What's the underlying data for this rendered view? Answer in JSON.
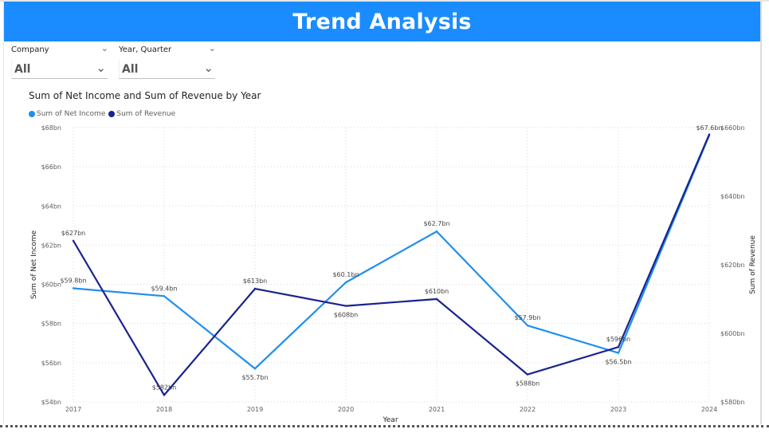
{
  "header": {
    "title": "Trend Analysis"
  },
  "slicers": [
    {
      "label": "Company",
      "value": "All"
    },
    {
      "label": "Year, Quarter",
      "value": "All"
    }
  ],
  "colors": {
    "title_bar": "#1a8cff",
    "net_income": "#1f8fee",
    "revenue": "#1a238f",
    "grid": "#d8d8d8"
  },
  "chart_data": {
    "type": "line",
    "title": "Sum of Net Income and Sum of Revenue by Year",
    "xlabel": "Year",
    "ylabel": "Sum of Net Income",
    "y2label": "Sum of Revenue",
    "x": [
      "2017",
      "2018",
      "2019",
      "2020",
      "2021",
      "2022",
      "2023",
      "2024"
    ],
    "ylim": [
      54,
      68
    ],
    "y_ticks": [
      54,
      56,
      58,
      60,
      62,
      64,
      66,
      68
    ],
    "y_tick_labels": [
      "$54bn",
      "$56bn",
      "$58bn",
      "$60bn",
      "$62bn",
      "$64bn",
      "$66bn",
      "$68bn"
    ],
    "y2lim": [
      580,
      660
    ],
    "y2_ticks": [
      580,
      600,
      620,
      640,
      660
    ],
    "y2_tick_labels": [
      "$580bn",
      "$600bn",
      "$620bn",
      "$640bn",
      "$660bn"
    ],
    "grid": true,
    "legend_position": "top-left",
    "series": [
      {
        "name": "Sum of Net Income",
        "axis": "left",
        "values": [
          59.8,
          59.4,
          55.7,
          60.1,
          62.7,
          57.9,
          56.5,
          67.6
        ],
        "labels": [
          "$59.8bn",
          "$59.4bn",
          "$55.7bn",
          "$60.1bn",
          "$62.7bn",
          "$57.9bn",
          "$56.5bn",
          "$67.6bn"
        ],
        "label_pos": [
          "above",
          "above",
          "below",
          "above",
          "above",
          "above",
          "below",
          "above"
        ]
      },
      {
        "name": "Sum of Revenue",
        "axis": "right",
        "values": [
          627,
          582,
          613,
          608,
          610,
          588,
          596,
          658
        ],
        "labels": [
          "$627bn",
          "$582bn",
          "$613bn",
          "$608bn",
          "$610bn",
          "$588bn",
          "$596bn",
          ""
        ],
        "label_pos": [
          "above",
          "above",
          "above",
          "below",
          "above",
          "below",
          "above",
          "above"
        ]
      }
    ]
  }
}
